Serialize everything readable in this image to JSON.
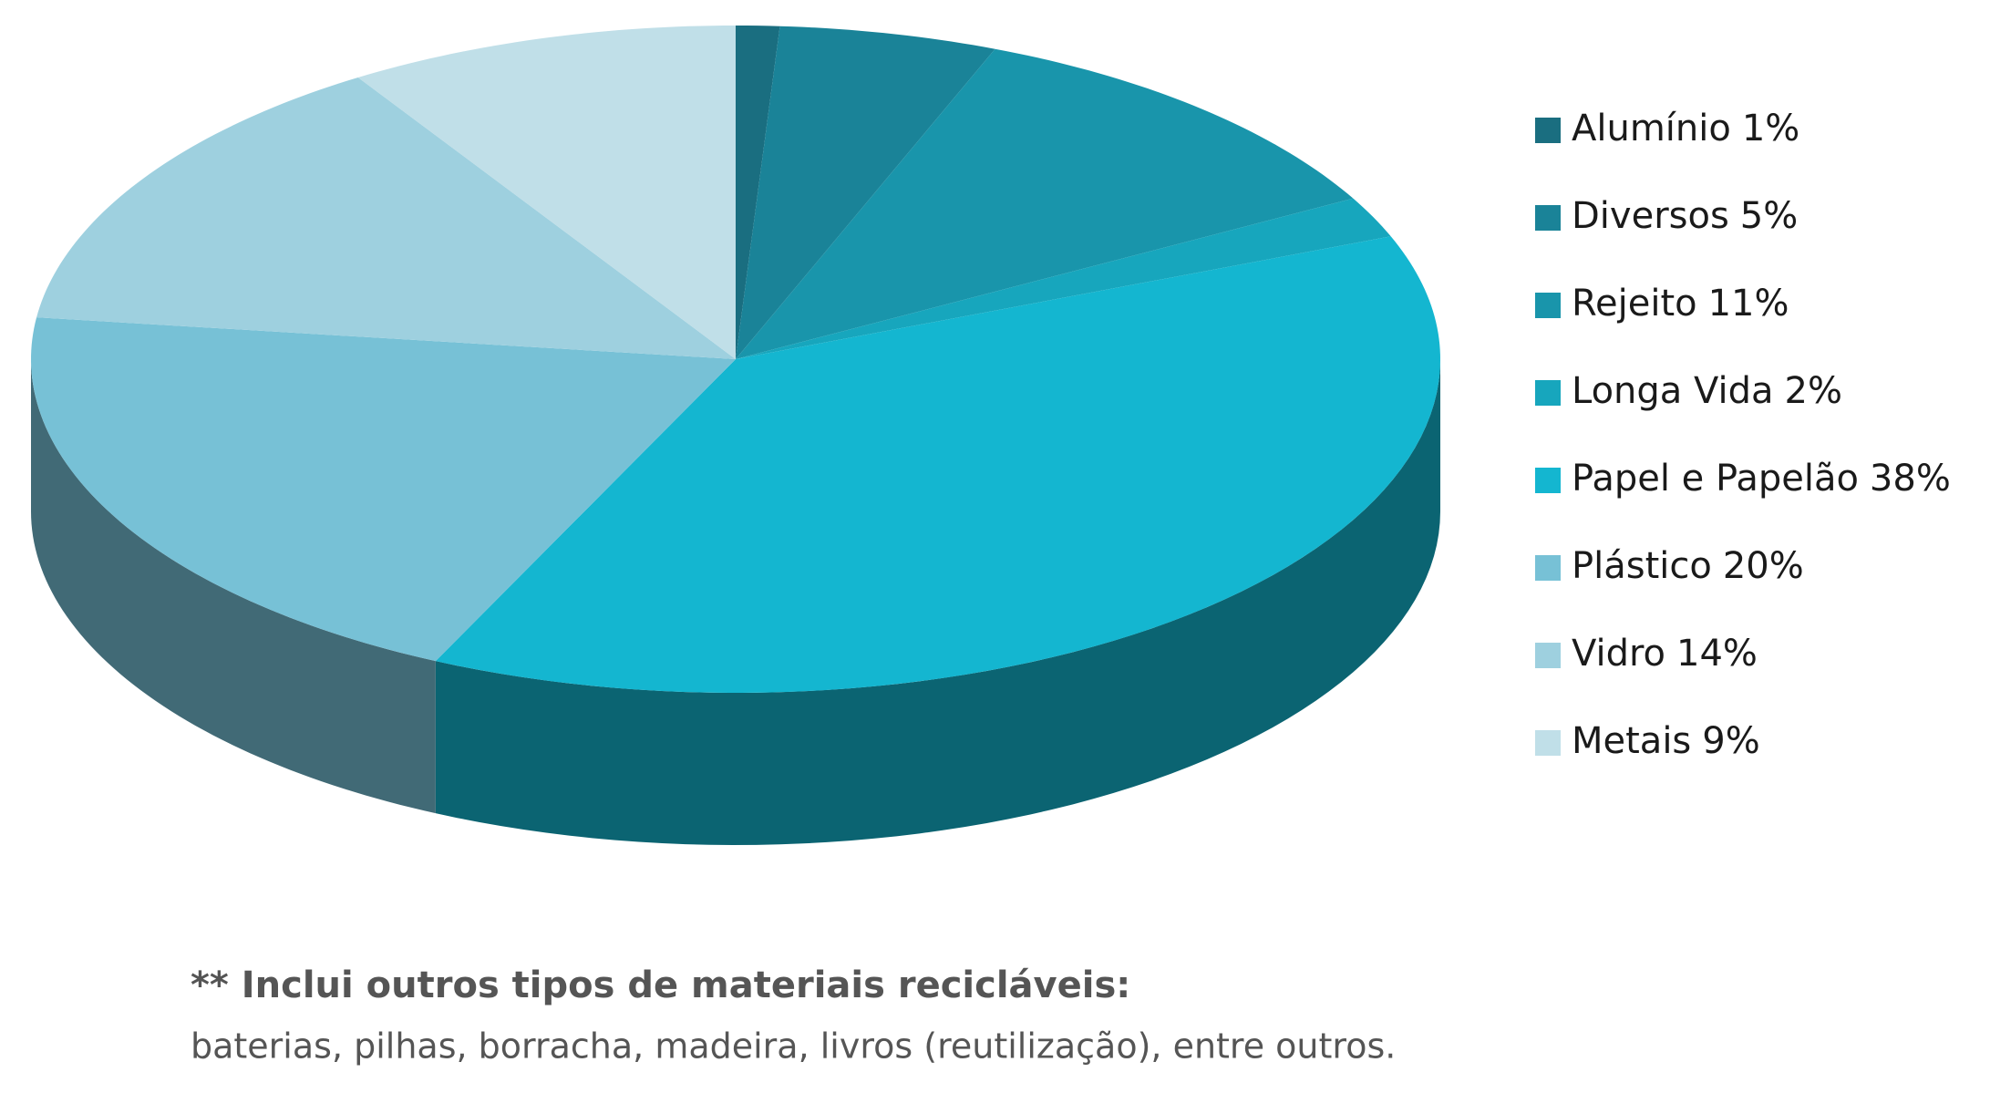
{
  "chart_data": {
    "type": "pie3d",
    "categories": [
      "Alumínio",
      "Diversos",
      "Rejeito",
      "Longa Vida",
      "Papel e Papelão",
      "Plástico",
      "Vidro",
      "Metais"
    ],
    "values": [
      1,
      5,
      11,
      2,
      38,
      20,
      14,
      9
    ],
    "value_labels": [
      "1%",
      "5%",
      "11%",
      "2%",
      "38%",
      "20%",
      "14%",
      "9%"
    ],
    "colors": [
      "#1a6e80",
      "#1a8398",
      "#1995ab",
      "#17a6bd",
      "#14b6d0",
      "#77c1d6",
      "#9ed0df",
      "#c0dfe8"
    ],
    "legend": "right",
    "annotations": [
      "** Inclui outros tipos de materiais recicláveis:",
      "baterias, pilhas, borracha, madeira, livros (reutilização), entre outros."
    ]
  }
}
